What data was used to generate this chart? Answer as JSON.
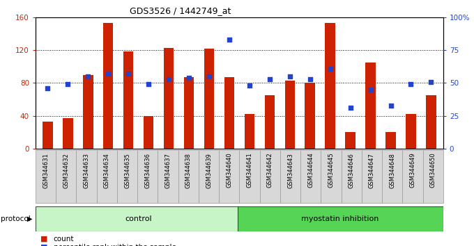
{
  "title": "GDS3526 / 1442749_at",
  "samples": [
    "GSM344631",
    "GSM344632",
    "GSM344633",
    "GSM344634",
    "GSM344635",
    "GSM344636",
    "GSM344637",
    "GSM344638",
    "GSM344639",
    "GSM344640",
    "GSM344641",
    "GSM344642",
    "GSM344643",
    "GSM344644",
    "GSM344645",
    "GSM344646",
    "GSM344647",
    "GSM344648",
    "GSM344649",
    "GSM344650"
  ],
  "counts": [
    33,
    37,
    90,
    153,
    118,
    40,
    123,
    87,
    122,
    87,
    42,
    65,
    83,
    80,
    153,
    20,
    105,
    20,
    42,
    65
  ],
  "percentile_ranks": [
    46,
    49,
    55,
    57,
    57,
    49,
    53,
    54,
    55,
    83,
    48,
    53,
    55,
    53,
    61,
    31,
    45,
    33,
    49,
    51
  ],
  "protocol_groups": [
    {
      "label": "control",
      "start": 0,
      "end": 10,
      "color": "#c8f5c8"
    },
    {
      "label": "myostatin inhibition",
      "start": 10,
      "end": 20,
      "color": "#55d455"
    }
  ],
  "bar_color": "#cc2200",
  "dot_color": "#2244cc",
  "ylim_left": [
    0,
    160
  ],
  "ylim_right": [
    0,
    100
  ],
  "yticks_left": [
    0,
    40,
    80,
    120,
    160
  ],
  "yticks_right": [
    0,
    25,
    50,
    75,
    100
  ],
  "ytick_labels_left": [
    "0",
    "40",
    "80",
    "120",
    "160"
  ],
  "ytick_labels_right": [
    "0",
    "25",
    "50",
    "75",
    "100%"
  ],
  "background_color": "#ffffff",
  "bar_width": 0.5
}
